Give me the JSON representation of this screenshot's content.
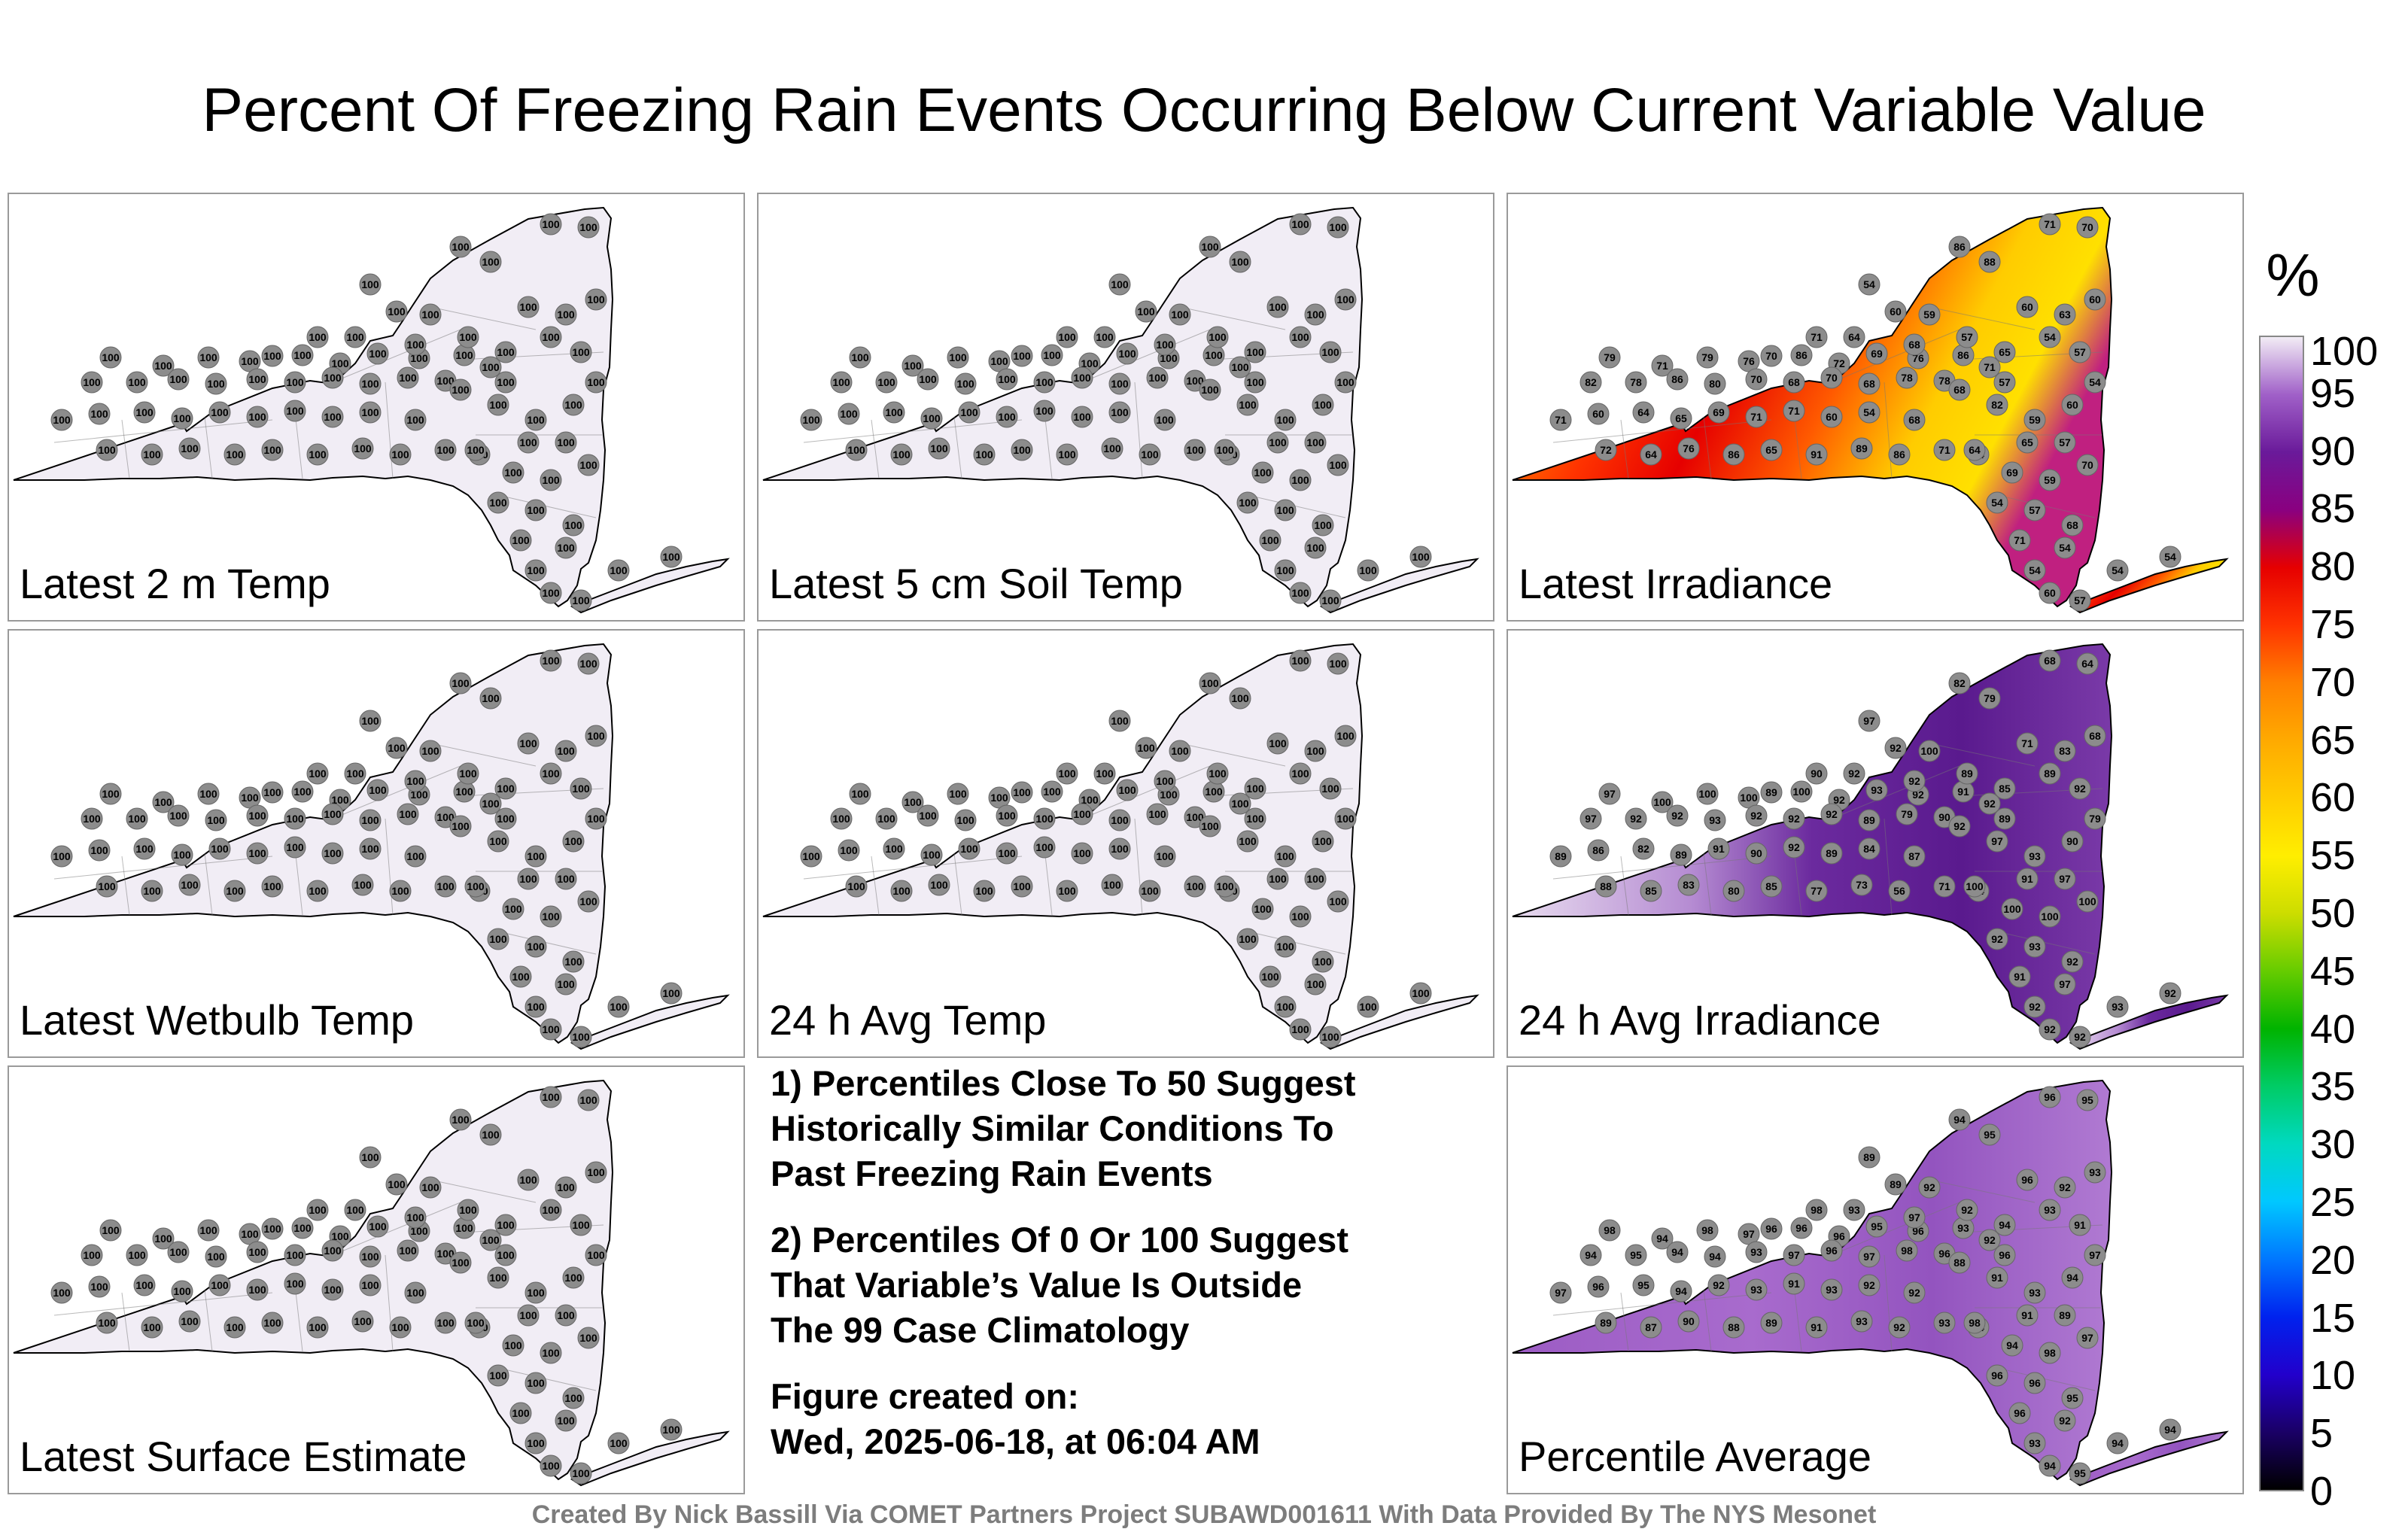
{
  "title": "Percent Of Freezing Rain Events Occurring Below Current Variable Value",
  "panels": [
    {
      "label": "Latest 2 m Temp",
      "mode": "white",
      "value": 100
    },
    {
      "label": "Latest 5 cm Soil Temp",
      "mode": "white",
      "value": 100
    },
    {
      "label": "Latest Irradiance",
      "mode": "irradiance",
      "value": 65
    },
    {
      "label": "Latest Wetbulb Temp",
      "mode": "white",
      "value": 100
    },
    {
      "label": "24 h Avg Temp",
      "mode": "white",
      "value": 100
    },
    {
      "label": "24 h Avg Irradiance",
      "mode": "purple",
      "value": 90
    },
    {
      "label": "Latest Surface Estimate",
      "mode": "white",
      "value": 100
    },
    {
      "label": "Percentile Average",
      "mode": "purple-light",
      "value": 94
    }
  ],
  "notes": [
    "1) Percentiles Close To 50 Suggest\nHistorically Similar Conditions To\nPast Freezing Rain Events",
    "2) Percentiles Of 0 Or 100 Suggest\nThat Variable’s Value Is Outside\nThe 99 Case Climatology",
    "Figure created on:\nWed, 2025-06-18, at 06:04 AM"
  ],
  "credit": "Created By Nick Bassill Via COMET Partners Project SUBAWD001611 With Data Provided By The NYS Mesonet",
  "colorbar": {
    "unit": "%",
    "ticks": [
      "100",
      "95",
      "90",
      "85",
      "80",
      "75",
      "70",
      "65",
      "60",
      "55",
      "50",
      "45",
      "40",
      "35",
      "30",
      "25",
      "20",
      "15",
      "10",
      "5",
      "0"
    ]
  },
  "station_values": {
    "irradiance": [
      79,
      71,
      79,
      76,
      86,
      72,
      69,
      76,
      86,
      71,
      82,
      78,
      86,
      80,
      70,
      68,
      70,
      68,
      78,
      78,
      71,
      60,
      64,
      65,
      69,
      71,
      71,
      60,
      54,
      68,
      72,
      64,
      76,
      86,
      65,
      91,
      89,
      86,
      71,
      64,
      86,
      88,
      71,
      70,
      60,
      63,
      60,
      54,
      65,
      57,
      57,
      59,
      54,
      60,
      68,
      82,
      59,
      60,
      65,
      57,
      64,
      69,
      59,
      70,
      54,
      57,
      68,
      71,
      54,
      54,
      60,
      57,
      54,
      54,
      64,
      68,
      57,
      54,
      71,
      70,
      54,
      60
    ],
    "avg_irradiance": [
      97,
      100,
      100,
      100,
      100,
      92,
      93,
      92,
      91,
      92,
      97,
      92,
      92,
      93,
      92,
      92,
      92,
      89,
      79,
      90,
      89,
      86,
      82,
      89,
      91,
      90,
      92,
      89,
      84,
      87,
      88,
      85,
      83,
      80,
      85,
      77,
      73,
      56,
      71,
      64,
      82,
      79,
      68,
      64,
      71,
      83,
      68,
      89,
      85,
      92,
      89,
      100,
      97,
      92,
      92,
      97,
      93,
      90,
      91
    ],
    "average": [
      98,
      94,
      98,
      97,
      96,
      96,
      95,
      96,
      93,
      92,
      94,
      95,
      94,
      94,
      93,
      97,
      96,
      97,
      98,
      96,
      97,
      96,
      95,
      94,
      92,
      93,
      91,
      93,
      92,
      92,
      89,
      87,
      90,
      88,
      89,
      91,
      93,
      92,
      93,
      94,
      94,
      95,
      96,
      95,
      96,
      92,
      93,
      93,
      94,
      91,
      92,
      92,
      89,
      89,
      88,
      91,
      93,
      94,
      91,
      89
    ]
  }
}
